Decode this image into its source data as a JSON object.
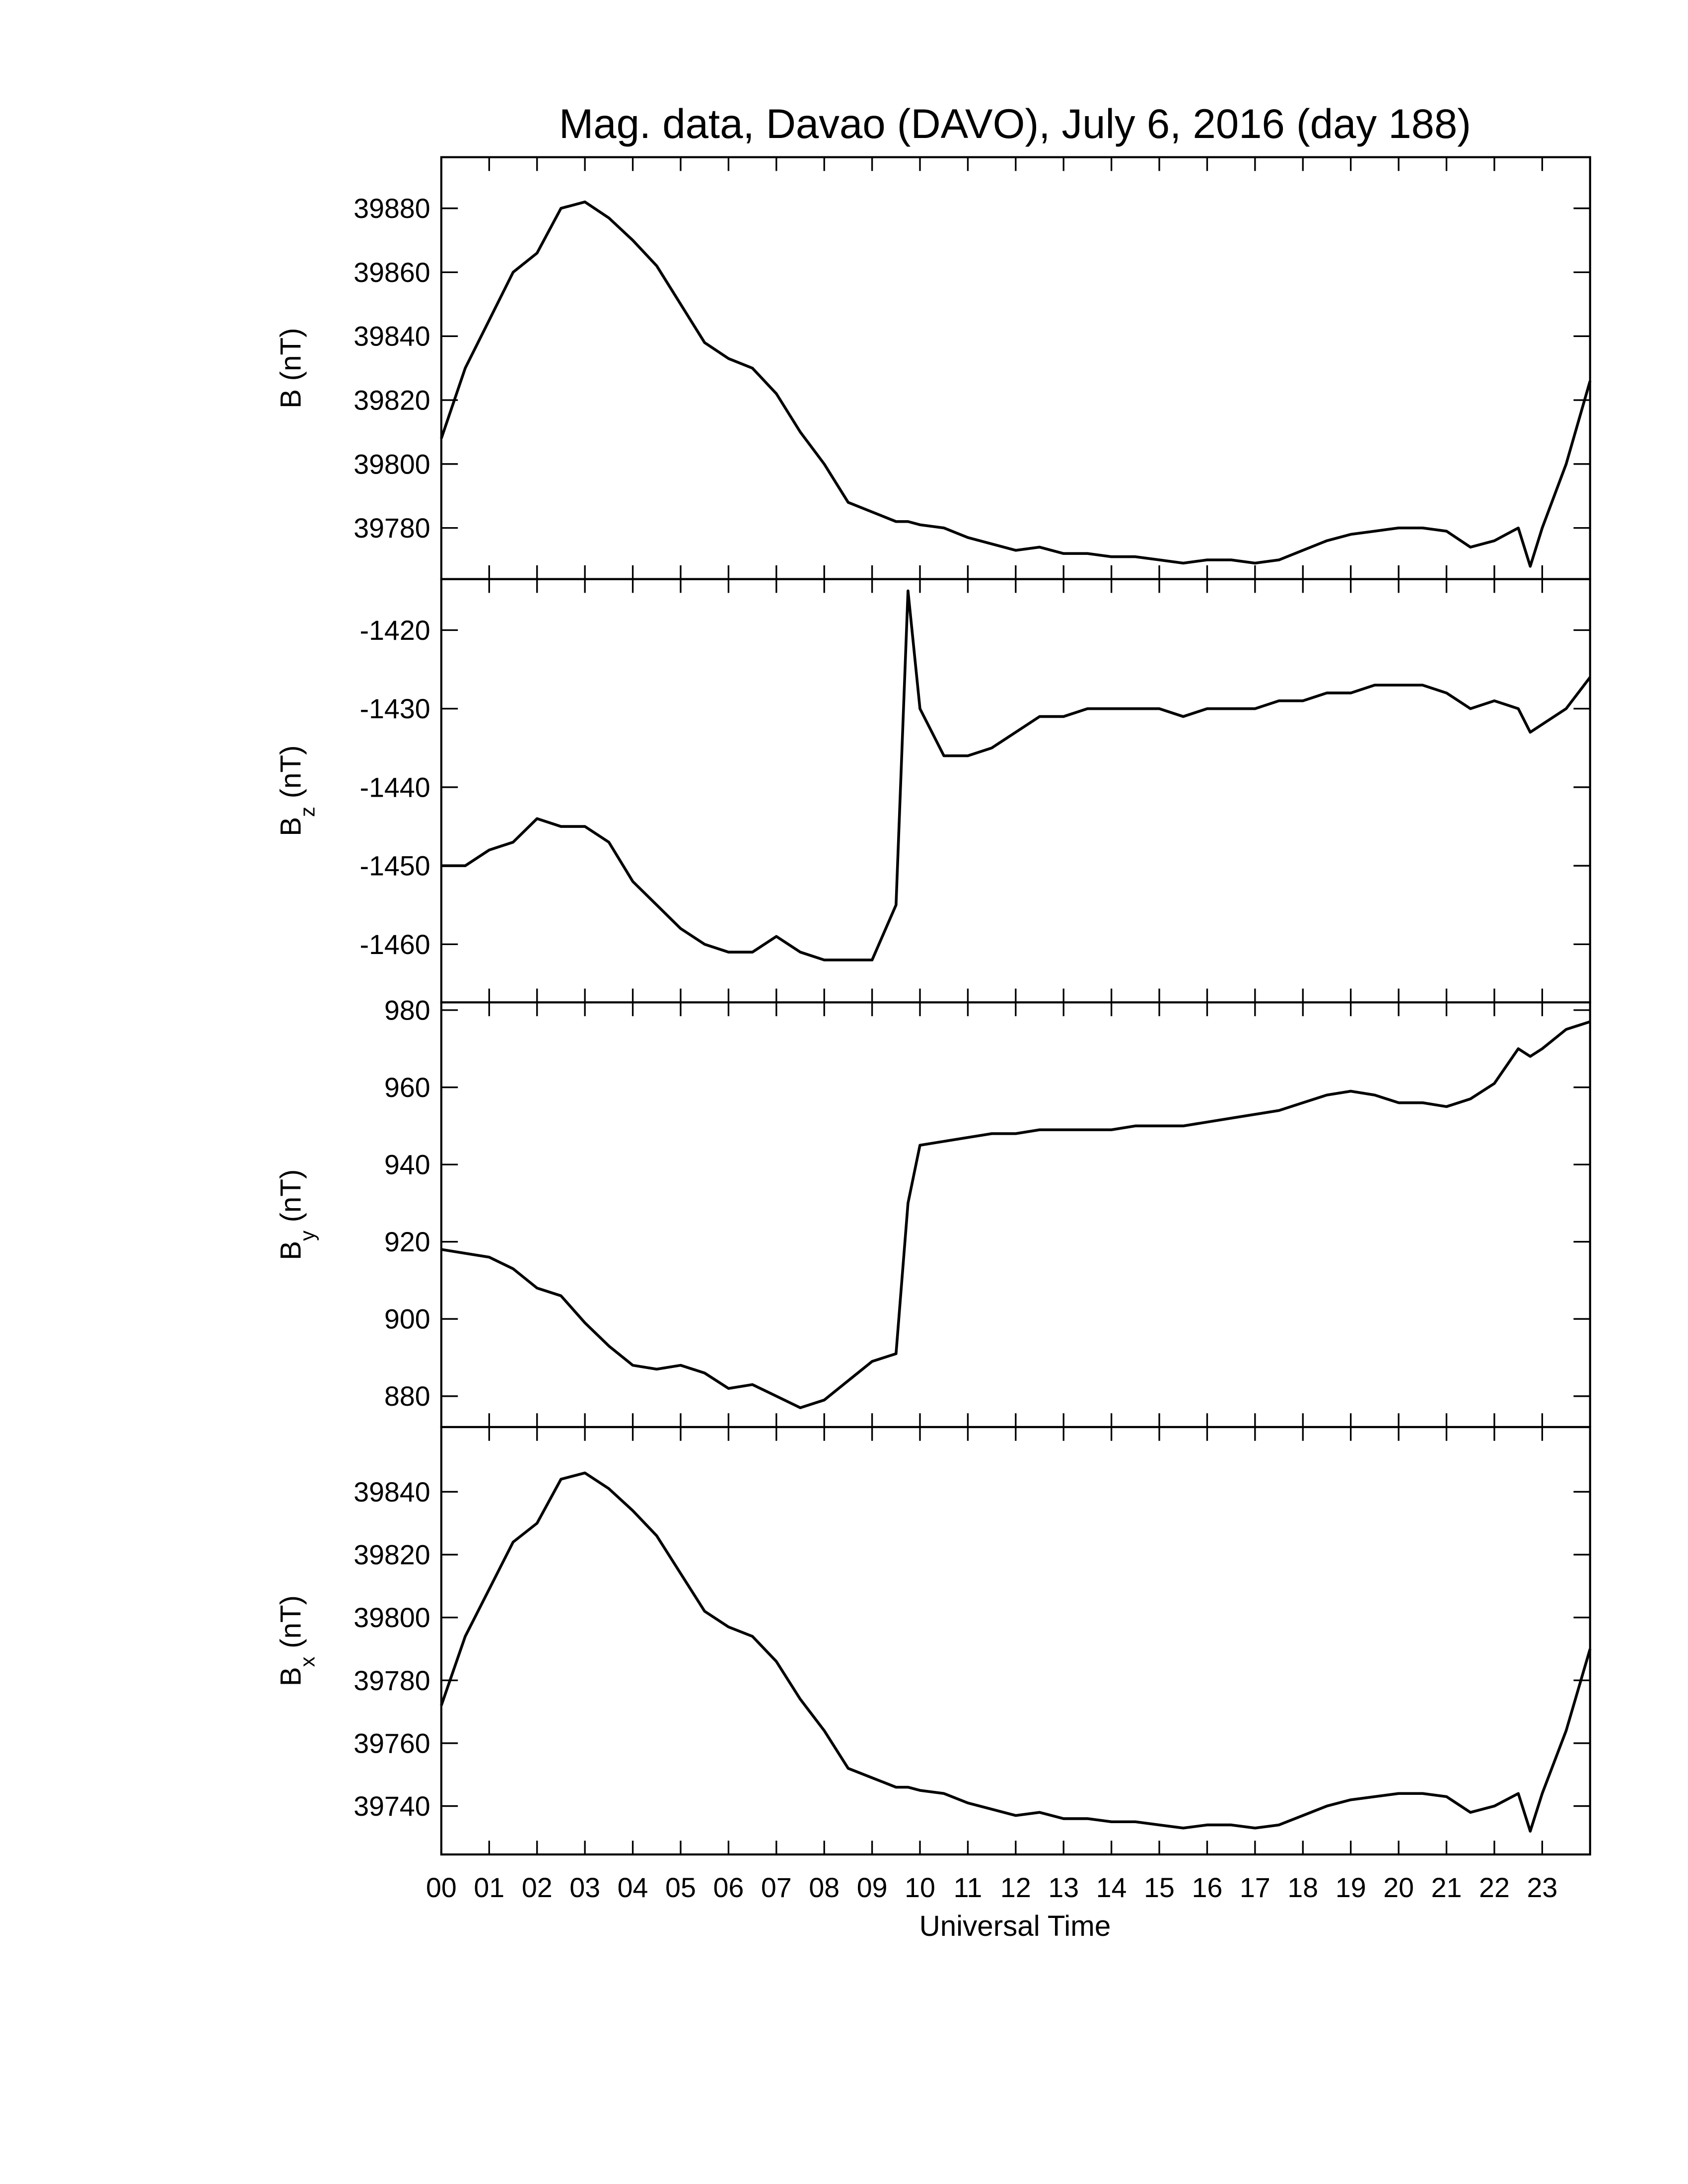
{
  "chart_data": {
    "type": "line",
    "title": "Mag. data, Davao (DAVO), July 6, 2016 (day 188)",
    "xlabel": "Universal Time",
    "xlim": [
      0,
      24
    ],
    "xticks": [
      {
        "value": 0,
        "label": "00"
      },
      {
        "value": 1,
        "label": "01"
      },
      {
        "value": 2,
        "label": "02"
      },
      {
        "value": 3,
        "label": "03"
      },
      {
        "value": 4,
        "label": "04"
      },
      {
        "value": 5,
        "label": "05"
      },
      {
        "value": 6,
        "label": "06"
      },
      {
        "value": 7,
        "label": "07"
      },
      {
        "value": 8,
        "label": "08"
      },
      {
        "value": 9,
        "label": "09"
      },
      {
        "value": 10,
        "label": "10"
      },
      {
        "value": 11,
        "label": "11"
      },
      {
        "value": 12,
        "label": "12"
      },
      {
        "value": 13,
        "label": "13"
      },
      {
        "value": 14,
        "label": "14"
      },
      {
        "value": 15,
        "label": "15"
      },
      {
        "value": 16,
        "label": "16"
      },
      {
        "value": 17,
        "label": "17"
      },
      {
        "value": 18,
        "label": "18"
      },
      {
        "value": 19,
        "label": "19"
      },
      {
        "value": 20,
        "label": "20"
      },
      {
        "value": 21,
        "label": "21"
      },
      {
        "value": 22,
        "label": "22"
      },
      {
        "value": 23,
        "label": "23"
      }
    ],
    "x": [
      0,
      0.5,
      1,
      1.5,
      2,
      2.5,
      3,
      3.5,
      4,
      4.5,
      5,
      5.5,
      6,
      6.5,
      7,
      7.5,
      8,
      8.5,
      9,
      9.5,
      9.75,
      10,
      10.5,
      11,
      11.5,
      12,
      12.5,
      13,
      13.5,
      14,
      14.5,
      15,
      15.5,
      16,
      16.5,
      17,
      17.5,
      18,
      18.5,
      19,
      19.5,
      20,
      20.5,
      21,
      21.5,
      22,
      22.5,
      22.75,
      23,
      23.5,
      24
    ],
    "panels": [
      {
        "ylabel": "B",
        "ylabel_unit": "(nT)",
        "ylim": [
          39764,
          39896
        ],
        "yticks": [
          39780,
          39800,
          39820,
          39840,
          39860,
          39880
        ],
        "series": [
          {
            "color": "#000000",
            "values": [
              39808,
              39830,
              39845,
              39860,
              39866,
              39880,
              39882,
              39877,
              39870,
              39862,
              39850,
              39838,
              39833,
              39830,
              39822,
              39810,
              39800,
              39788,
              39785,
              39782,
              39782,
              39781,
              39780,
              39777,
              39775,
              39773,
              39774,
              39772,
              39772,
              39771,
              39771,
              39770,
              39769,
              39770,
              39770,
              39769,
              39770,
              39773,
              39776,
              39778,
              39779,
              39780,
              39780,
              39779,
              39774,
              39776,
              39780,
              39768,
              39780,
              39800,
              39826
            ]
          }
        ]
      },
      {
        "ylabel": "B",
        "ylabel_sub": "z",
        "ylabel_unit": "(nT)",
        "ylim": [
          -1467.4,
          -1413.5
        ],
        "yticks": [
          -1460,
          -1450,
          -1440,
          -1430,
          -1420
        ],
        "series": [
          {
            "color": "#000000",
            "values": [
              -1450,
              -1450,
              -1448,
              -1447,
              -1444,
              -1445,
              -1445,
              -1447,
              -1452,
              -1455,
              -1458,
              -1460,
              -1461,
              -1461,
              -1459,
              -1461,
              -1462,
              -1462,
              -1462,
              -1455,
              -1415,
              -1430,
              -1436,
              -1436,
              -1435,
              -1433,
              -1431,
              -1431,
              -1430,
              -1430,
              -1430,
              -1430,
              -1431,
              -1430,
              -1430,
              -1430,
              -1429,
              -1429,
              -1428,
              -1428,
              -1427,
              -1427,
              -1427,
              -1428,
              -1430,
              -1429,
              -1430,
              -1433,
              -1432,
              -1430,
              -1426
            ]
          }
        ]
      },
      {
        "ylabel": "B",
        "ylabel_sub": "y",
        "ylabel_unit": "(nT)",
        "ylim": [
          872,
          982
        ],
        "yticks": [
          880,
          900,
          920,
          940,
          960,
          980
        ],
        "series": [
          {
            "color": "#000000",
            "values": [
              918,
              917,
              916,
              913,
              908,
              906,
              899,
              893,
              888,
              887,
              888,
              886,
              882,
              883,
              880,
              877,
              879,
              884,
              889,
              891,
              930,
              945,
              946,
              947,
              948,
              948,
              949,
              949,
              949,
              949,
              950,
              950,
              950,
              951,
              952,
              953,
              954,
              956,
              958,
              959,
              958,
              956,
              956,
              955,
              957,
              961,
              970,
              968,
              970,
              975,
              977
            ]
          }
        ]
      },
      {
        "ylabel": "B",
        "ylabel_sub": "x",
        "ylabel_unit": "(nT)",
        "ylim": [
          39724.6,
          39860.6
        ],
        "yticks": [
          39740,
          39760,
          39780,
          39800,
          39820,
          39840
        ],
        "series": [
          {
            "color": "#000000",
            "values": [
              39772,
              39794,
              39809,
              39824,
              39830,
              39844,
              39846,
              39841,
              39834,
              39826,
              39814,
              39802,
              39797,
              39794,
              39786,
              39774,
              39764,
              39752,
              39749,
              39746,
              39746,
              39745,
              39744,
              39741,
              39739,
              39737,
              39738,
              39736,
              39736,
              39735,
              39735,
              39734,
              39733,
              39734,
              39734,
              39733,
              39734,
              39737,
              39740,
              39742,
              39743,
              39744,
              39744,
              39743,
              39738,
              39740,
              39744,
              39732,
              39744,
              39764,
              39790
            ]
          }
        ]
      }
    ]
  }
}
